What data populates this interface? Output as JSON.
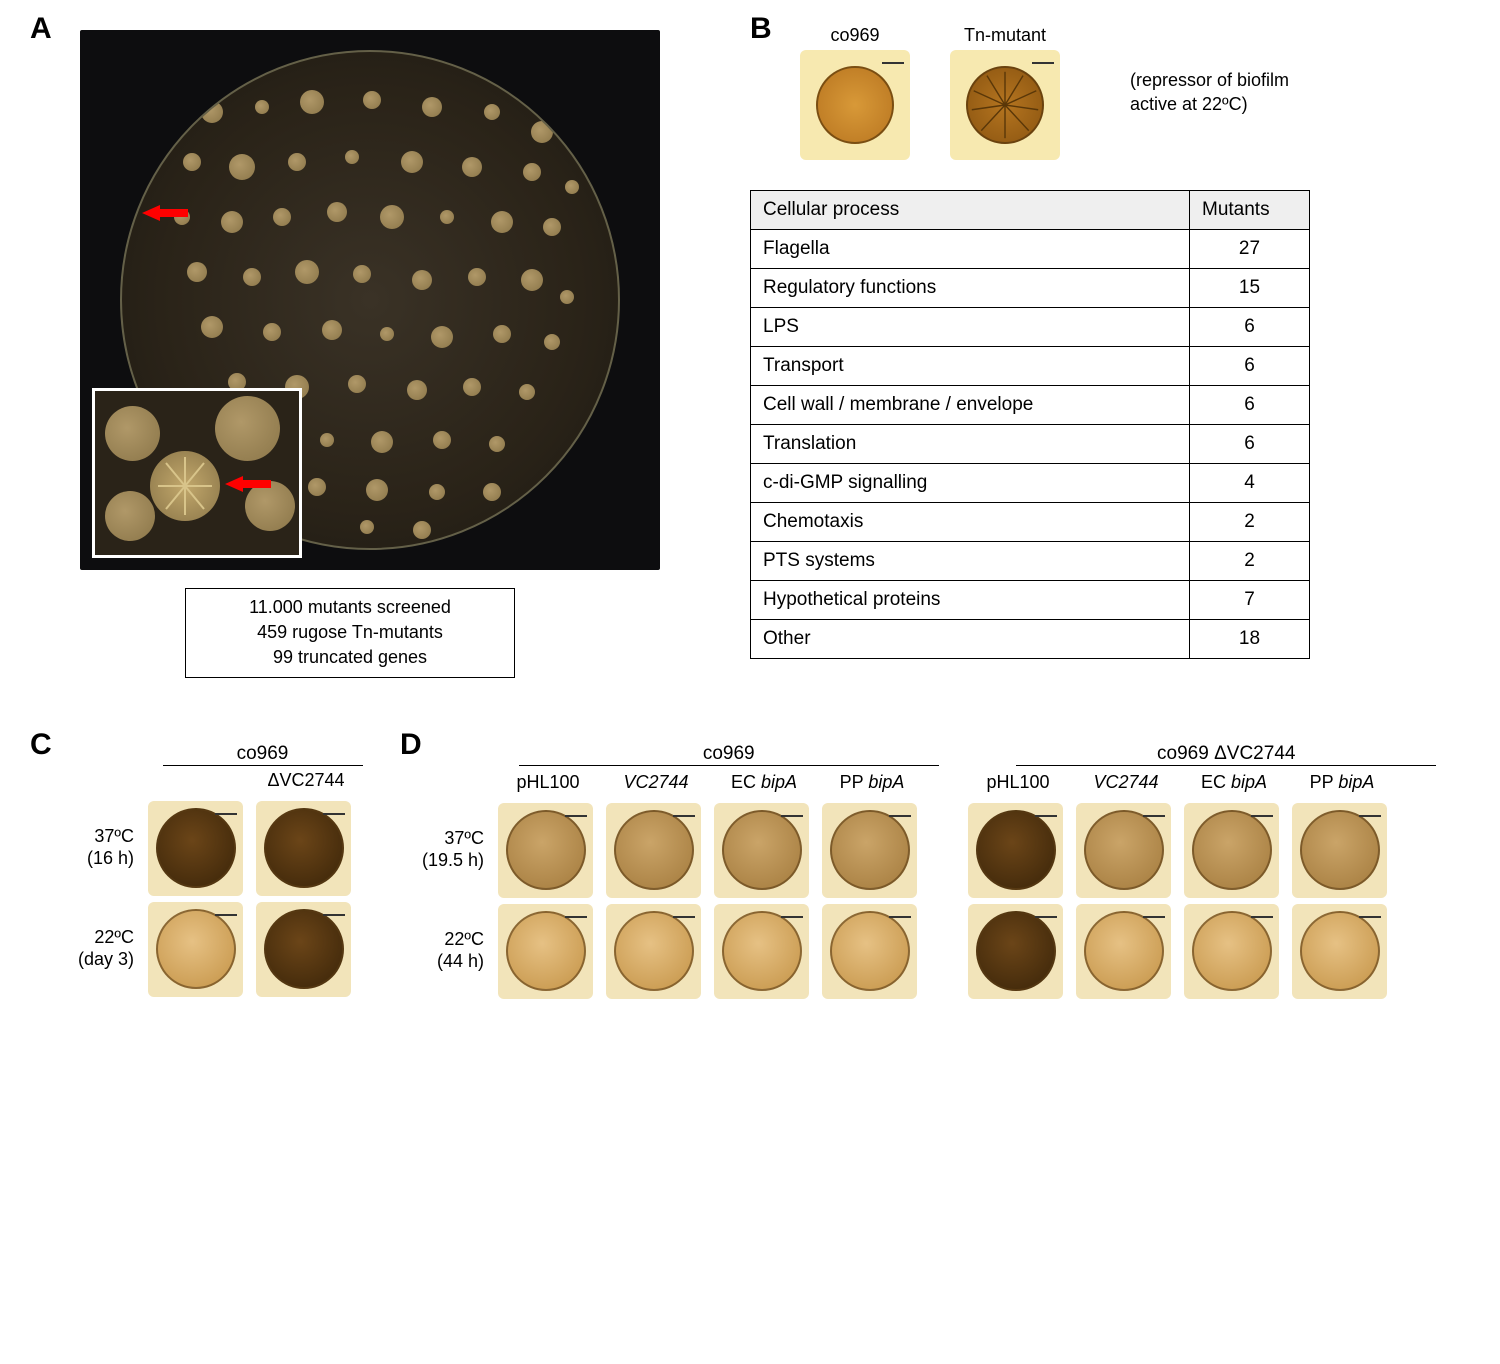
{
  "panelA": {
    "label": "A",
    "summary": {
      "line1": "11.000 mutants screened",
      "line2": "459 rugose Tn-mutants",
      "line3": "99 truncated genes"
    },
    "colonies": [
      [
        90,
        60,
        22
      ],
      [
        140,
        55,
        14
      ],
      [
        190,
        50,
        24
      ],
      [
        250,
        48,
        18
      ],
      [
        310,
        55,
        20
      ],
      [
        370,
        60,
        16
      ],
      [
        420,
        80,
        22
      ],
      [
        70,
        110,
        18
      ],
      [
        120,
        115,
        26
      ],
      [
        175,
        110,
        18
      ],
      [
        230,
        105,
        14
      ],
      [
        290,
        110,
        22
      ],
      [
        350,
        115,
        20
      ],
      [
        410,
        120,
        18
      ],
      [
        450,
        135,
        14
      ],
      [
        60,
        165,
        16
      ],
      [
        110,
        170,
        22
      ],
      [
        160,
        165,
        18
      ],
      [
        215,
        160,
        20
      ],
      [
        270,
        165,
        24
      ],
      [
        325,
        165,
        14
      ],
      [
        380,
        170,
        22
      ],
      [
        430,
        175,
        18
      ],
      [
        75,
        220,
        20
      ],
      [
        130,
        225,
        18
      ],
      [
        185,
        220,
        24
      ],
      [
        240,
        222,
        18
      ],
      [
        300,
        228,
        20
      ],
      [
        355,
        225,
        18
      ],
      [
        410,
        228,
        22
      ],
      [
        445,
        245,
        14
      ],
      [
        90,
        275,
        22
      ],
      [
        150,
        280,
        18
      ],
      [
        210,
        278,
        20
      ],
      [
        265,
        282,
        14
      ],
      [
        320,
        285,
        22
      ],
      [
        380,
        282,
        18
      ],
      [
        430,
        290,
        16
      ],
      [
        115,
        330,
        18
      ],
      [
        175,
        335,
        24
      ],
      [
        235,
        332,
        18
      ],
      [
        295,
        338,
        20
      ],
      [
        350,
        335,
        18
      ],
      [
        405,
        340,
        16
      ],
      [
        145,
        385,
        20
      ],
      [
        205,
        388,
        14
      ],
      [
        260,
        390,
        22
      ],
      [
        320,
        388,
        18
      ],
      [
        375,
        392,
        16
      ],
      [
        195,
        435,
        18
      ],
      [
        255,
        438,
        22
      ],
      [
        315,
        440,
        16
      ],
      [
        370,
        440,
        18
      ],
      [
        245,
        475,
        14
      ],
      [
        300,
        478,
        18
      ]
    ]
  },
  "panelB": {
    "label": "B",
    "samples": {
      "left": "co969",
      "right": "Tn-mutant"
    },
    "note_line1": "(repressor of biofilm",
    "note_line2": "active at 22ºC)",
    "table_headers": {
      "process": "Cellular process",
      "mutants": "Mutants"
    },
    "rows": [
      {
        "name": "Flagella",
        "n": 27
      },
      {
        "name": "Regulatory functions",
        "n": 15
      },
      {
        "name": "LPS",
        "n": 6
      },
      {
        "name": "Transport",
        "n": 6
      },
      {
        "name": "Cell wall / membrane / envelope",
        "n": 6
      },
      {
        "name": "Translation",
        "n": 6
      },
      {
        "name": "c-di-GMP signalling",
        "n": 4
      },
      {
        "name": "Chemotaxis",
        "n": 2
      },
      {
        "name": "PTS systems",
        "n": 2
      },
      {
        "name": "Hypothetical proteins",
        "n": 7
      },
      {
        "name": "Other",
        "n": 18
      }
    ]
  },
  "panelC": {
    "label": "C",
    "header": "co969",
    "col2": "ΔVC2744",
    "row1_a": "37ºC",
    "row1_b": "(16 h)",
    "row2_a": "22ºC",
    "row2_b": "(day 3)",
    "cells": [
      {
        "style": "rough-dark"
      },
      {
        "style": "rough-dark"
      },
      {
        "style": "smooth-light"
      },
      {
        "style": "rough-dark"
      }
    ]
  },
  "panelD": {
    "label": "D",
    "left_header": "co969",
    "right_header": "co969 ΔVC2744",
    "cols": [
      "pHL100",
      "VC2744",
      "EC bipA",
      "PP bipA"
    ],
    "italic_cols": [
      false,
      true,
      false,
      false
    ],
    "italic_tail": [
      false,
      false,
      true,
      true
    ],
    "row1_a": "37ºC",
    "row1_b": "(19.5 h)",
    "row2_a": "22ºC",
    "row2_b": "(44 h)",
    "left_cells": [
      [
        "mottled",
        "mottled",
        "mottled",
        "mottled"
      ],
      [
        "smooth-light",
        "smooth-light",
        "smooth-light",
        "smooth-light"
      ]
    ],
    "right_cells": [
      [
        "rough-dark",
        "mottled",
        "mottled",
        "mottled"
      ],
      [
        "rough-dark",
        "smooth-light",
        "smooth-light",
        "smooth-light"
      ]
    ]
  },
  "colors": {
    "background": "#ffffff",
    "dish_bg": "#0d0d0f",
    "arrow": "#ff0000",
    "table_header_bg": "#efefef",
    "border": "#000000"
  }
}
